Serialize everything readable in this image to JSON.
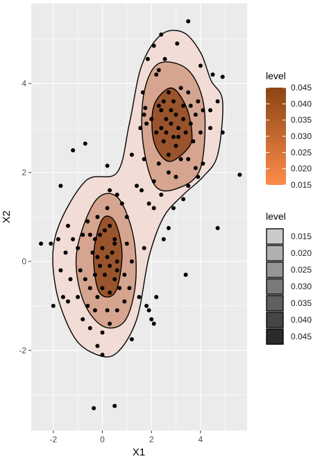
{
  "chart_data": {
    "type": "scatter",
    "subtype": "2d-density-contour",
    "xlabel": "X1",
    "ylabel": "X2",
    "xlim": [
      -2.9,
      5.9
    ],
    "ylim": [
      -3.8,
      5.8
    ],
    "x_ticks": [
      -2,
      0,
      2,
      4
    ],
    "x_tick_labels": [
      "-2",
      "0",
      "2",
      "4"
    ],
    "y_ticks": [
      -2,
      0,
      2,
      4
    ],
    "y_tick_labels": [
      "-2",
      "0",
      "2",
      "4"
    ],
    "grid": true,
    "legend_position": "right",
    "colors": {
      "panel_bg": "#ebebeb",
      "grid": "#ffffff",
      "fill_low": "#ff8c4c",
      "fill_high": "#8b4513",
      "points": "#000000",
      "contour_line": "#000000"
    },
    "fill_legend": {
      "title": "level",
      "labels": [
        "0.045",
        "0.040",
        "0.035",
        "0.030",
        "0.025",
        "0.020",
        "0.015"
      ],
      "values": [
        0.045,
        0.04,
        0.035,
        0.03,
        0.025,
        0.02,
        0.015
      ]
    },
    "alpha_legend": {
      "title": "level",
      "labels": [
        "0.015",
        "0.020",
        "0.025",
        "0.030",
        "0.035",
        "0.040",
        "0.045"
      ],
      "values": [
        0.015,
        0.02,
        0.025,
        0.03,
        0.035,
        0.04,
        0.045
      ]
    },
    "contours": [
      {
        "level": 0.015,
        "fill": "#f2dcd6",
        "points": [
          [
            4.43,
            4.07
          ],
          [
            4.9,
            3.6
          ],
          [
            4.7,
            2.4
          ],
          [
            4.1,
            1.9
          ],
          [
            3.3,
            1.5
          ],
          [
            2.5,
            1.0
          ],
          [
            1.9,
            0.1
          ],
          [
            1.4,
            -1.3
          ],
          [
            0.6,
            -2.05
          ],
          [
            -0.2,
            -2.1
          ],
          [
            -1.15,
            -1.7
          ],
          [
            -1.9,
            -0.6
          ],
          [
            -1.9,
            0.6
          ],
          [
            -0.7,
            1.8
          ],
          [
            0.6,
            2.0
          ],
          [
            1.1,
            3.1
          ],
          [
            1.6,
            4.4
          ],
          [
            2.4,
            5.1
          ],
          [
            3.3,
            5.15
          ],
          [
            4.0,
            4.7
          ]
        ]
      },
      {
        "level": 0.025,
        "fill": "#d6a590",
        "points": [
          [
            -0.3,
            1.35
          ],
          [
            0.6,
            1.45
          ],
          [
            1.25,
            0.6
          ],
          [
            1.35,
            -0.5
          ],
          [
            0.9,
            -1.35
          ],
          [
            0.0,
            -1.45
          ],
          [
            -0.8,
            -0.85
          ],
          [
            -1.05,
            0.2
          ]
        ]
      },
      {
        "level": 0.025,
        "fill": "#d6a590",
        "points": [
          [
            3.5,
            4.3
          ],
          [
            4.15,
            3.45
          ],
          [
            4.0,
            2.1
          ],
          [
            3.1,
            1.65
          ],
          [
            2.15,
            1.7
          ],
          [
            1.65,
            2.7
          ],
          [
            1.7,
            3.8
          ],
          [
            2.3,
            4.45
          ]
        ]
      },
      {
        "level": 0.04,
        "fill": "#9a542d",
        "points": [
          [
            0.0,
            0.95
          ],
          [
            0.5,
            0.9
          ],
          [
            0.8,
            0.2
          ],
          [
            0.6,
            -0.6
          ],
          [
            0.2,
            -0.8
          ],
          [
            -0.2,
            -0.6
          ],
          [
            -0.35,
            0.2
          ]
        ]
      },
      {
        "level": 0.04,
        "fill": "#9a542d",
        "points": [
          [
            2.8,
            3.9
          ],
          [
            3.4,
            3.5
          ],
          [
            3.65,
            2.9
          ],
          [
            3.5,
            2.55
          ],
          [
            2.7,
            2.25
          ],
          [
            2.1,
            2.7
          ],
          [
            2.1,
            3.5
          ]
        ]
      }
    ],
    "points": [
      [
        3.5,
        5.4
      ],
      [
        2.4,
        5.1
      ],
      [
        2.1,
        4.85
      ],
      [
        1.85,
        4.55
      ],
      [
        2.3,
        4.3
      ],
      [
        2.55,
        4.55
      ],
      [
        3.05,
        4.9
      ],
      [
        2.2,
        4.2
      ],
      [
        1.65,
        3.8
      ],
      [
        4.0,
        4.4
      ],
      [
        4.5,
        4.2
      ],
      [
        1.75,
        3.45
      ],
      [
        1.55,
        3.0
      ],
      [
        1.7,
        3.3
      ],
      [
        2.3,
        3.5
      ],
      [
        2.5,
        3.6
      ],
      [
        2.7,
        3.8
      ],
      [
        2.9,
        3.6
      ],
      [
        3.2,
        3.9
      ],
      [
        3.5,
        3.8
      ],
      [
        3.6,
        3.5
      ],
      [
        3.8,
        3.3
      ],
      [
        3.9,
        3.6
      ],
      [
        4.1,
        3.4
      ],
      [
        4.4,
        3.4
      ],
      [
        4.4,
        3.0
      ],
      [
        4.0,
        2.9
      ],
      [
        3.7,
        2.7
      ],
      [
        3.4,
        2.9
      ],
      [
        3.1,
        3.0
      ],
      [
        2.8,
        3.1
      ],
      [
        2.6,
        3.2
      ],
      [
        2.4,
        3.0
      ],
      [
        2.2,
        2.9
      ],
      [
        2.0,
        3.2
      ],
      [
        1.8,
        3.1
      ],
      [
        2.5,
        2.7
      ],
      [
        2.7,
        2.4
      ],
      [
        3.0,
        2.6
      ],
      [
        3.2,
        2.3
      ],
      [
        3.5,
        2.3
      ],
      [
        3.8,
        2.1
      ],
      [
        4.1,
        2.2
      ],
      [
        3.9,
        1.9
      ],
      [
        3.5,
        1.7
      ],
      [
        3.3,
        1.4
      ],
      [
        3.0,
        1.9
      ],
      [
        2.7,
        2.0
      ],
      [
        2.3,
        2.2
      ],
      [
        2.1,
        1.8
      ],
      [
        1.6,
        1.6
      ],
      [
        1.7,
        2.3
      ],
      [
        2.4,
        1.5
      ],
      [
        2.1,
        1.2
      ],
      [
        1.9,
        1.3
      ],
      [
        2.8,
        3.4
      ],
      [
        3.0,
        3.3
      ],
      [
        3.3,
        3.5
      ],
      [
        2.6,
        2.9
      ],
      [
        3.1,
        2.8
      ],
      [
        3.3,
        3.2
      ],
      [
        2.9,
        2.8
      ],
      [
        3.6,
        3.1
      ],
      [
        2.4,
        3.4
      ],
      [
        1.2,
        2.4
      ],
      [
        1.4,
        1.7
      ],
      [
        1.0,
        1.0
      ],
      [
        0.8,
        1.3
      ],
      [
        0.6,
        1.5
      ],
      [
        0.3,
        1.6
      ],
      [
        0.2,
        1.2
      ],
      [
        -0.2,
        1.0
      ],
      [
        -0.6,
        0.9
      ],
      [
        -0.5,
        0.6
      ],
      [
        -0.3,
        0.5
      ],
      [
        -0.1,
        0.6
      ],
      [
        0.1,
        0.7
      ],
      [
        0.3,
        0.8
      ],
      [
        0.5,
        0.5
      ],
      [
        0.4,
        0.2
      ],
      [
        0.2,
        0.1
      ],
      [
        0.0,
        0.3
      ],
      [
        -0.2,
        0.1
      ],
      [
        -0.4,
        0.2
      ],
      [
        0.6,
        0.0
      ],
      [
        0.3,
        -0.1
      ],
      [
        0.1,
        -0.3
      ],
      [
        -0.1,
        -0.1
      ],
      [
        -0.3,
        -0.3
      ],
      [
        0.5,
        -0.4
      ],
      [
        0.7,
        -0.6
      ],
      [
        0.3,
        -0.7
      ],
      [
        0.0,
        -0.6
      ],
      [
        -0.2,
        -0.8
      ],
      [
        -0.5,
        -0.6
      ],
      [
        -0.7,
        -0.4
      ],
      [
        -0.9,
        -0.2
      ],
      [
        -1.0,
        0.3
      ],
      [
        -1.2,
        0.5
      ],
      [
        -0.8,
        0.6
      ],
      [
        -1.4,
        0.8
      ],
      [
        -1.5,
        0.2
      ],
      [
        -1.7,
        -0.2
      ],
      [
        -1.8,
        0.5
      ],
      [
        -1.3,
        -0.4
      ],
      [
        -1.0,
        -0.8
      ],
      [
        -0.6,
        -1.0
      ],
      [
        -0.3,
        -1.1
      ],
      [
        0.2,
        -1.1
      ],
      [
        0.6,
        -1.1
      ],
      [
        0.9,
        -0.9
      ],
      [
        1.1,
        -0.6
      ],
      [
        0.9,
        -0.3
      ],
      [
        1.2,
        0.0
      ],
      [
        1.0,
        0.4
      ],
      [
        -0.8,
        -1.3
      ],
      [
        -0.5,
        -1.5
      ],
      [
        0.0,
        -1.6
      ],
      [
        0.3,
        -1.4
      ],
      [
        -0.2,
        -1.9
      ],
      [
        0.0,
        -2.1
      ],
      [
        -1.4,
        -0.9
      ],
      [
        -1.6,
        -0.8
      ],
      [
        -2.0,
        -1.0
      ],
      [
        -2.5,
        0.4
      ],
      [
        -2.1,
        0.4
      ],
      [
        -1.2,
        2.5
      ],
      [
        -0.7,
        2.65
      ],
      [
        0.2,
        2.15
      ],
      [
        -1.7,
        1.7
      ],
      [
        0.5,
        -3.25
      ],
      [
        -0.35,
        -3.3
      ],
      [
        1.5,
        -0.8
      ],
      [
        1.8,
        -1.0
      ],
      [
        1.9,
        -1.1
      ],
      [
        2.0,
        -1.3
      ],
      [
        2.2,
        -0.8
      ],
      [
        2.1,
        -1.4
      ],
      [
        1.2,
        -1.75
      ],
      [
        0.5,
        0.4
      ],
      [
        0.6,
        -0.2
      ],
      [
        1.7,
        0.3
      ],
      [
        2.5,
        0.5
      ],
      [
        2.9,
        1.2
      ],
      [
        2.7,
        0.75
      ],
      [
        3.4,
        -0.3
      ],
      [
        4.7,
        0.75
      ],
      [
        5.6,
        1.95
      ],
      [
        4.9,
        2.9
      ],
      [
        4.7,
        3.6
      ],
      [
        4.9,
        4.15
      ]
    ]
  }
}
